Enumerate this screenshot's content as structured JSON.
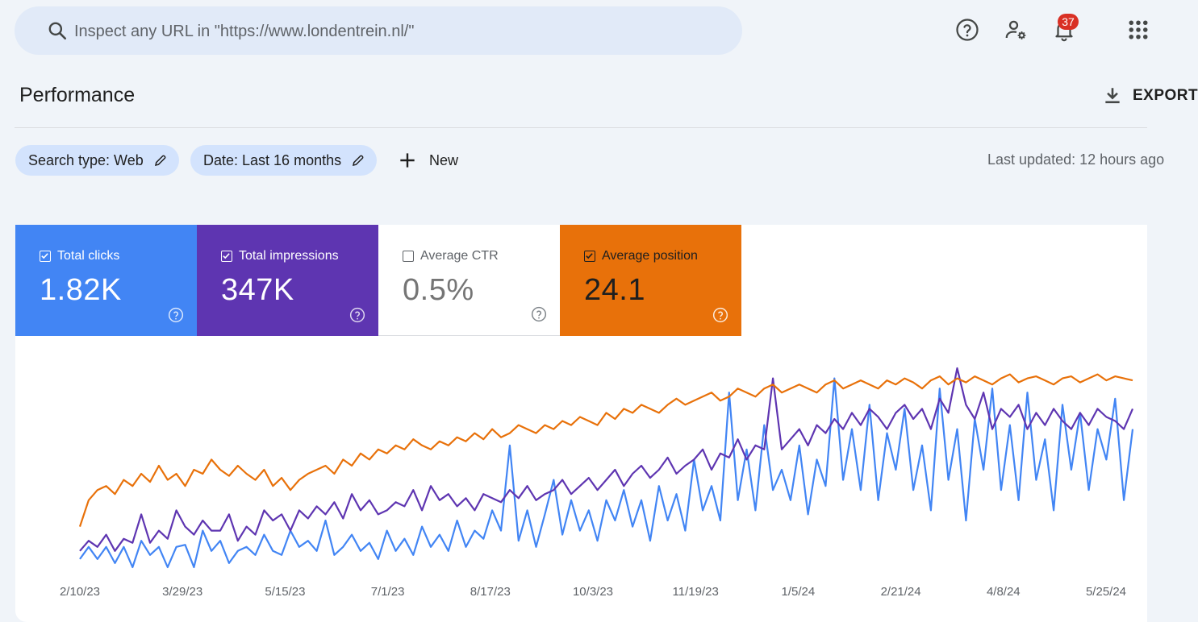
{
  "search": {
    "placeholder": "Inspect any URL in \"https://www.londentrein.nl/\""
  },
  "header": {
    "notification_count": "37"
  },
  "page": {
    "title": "Performance",
    "export_label": "EXPORT"
  },
  "filters": {
    "search_type": "Search type: Web",
    "date": "Date: Last 16 months",
    "new_label": "New",
    "last_updated": "Last updated: 12 hours ago"
  },
  "metrics": {
    "clicks": {
      "label": "Total clicks",
      "value": "1.82K",
      "checked": true,
      "color": "#4285f4"
    },
    "impressions": {
      "label": "Total impressions",
      "value": "347K",
      "checked": true,
      "color": "#5e35b1"
    },
    "ctr": {
      "label": "Average CTR",
      "value": "0.5%",
      "checked": false,
      "color": "#00897b"
    },
    "position": {
      "label": "Average position",
      "value": "24.1",
      "checked": true,
      "color": "#e8710a"
    }
  },
  "chart_data": {
    "type": "line",
    "x_tick_labels": [
      "2/10/23",
      "3/29/23",
      "5/15/23",
      "7/1/23",
      "8/17/23",
      "10/3/23",
      "11/19/23",
      "1/5/24",
      "2/21/24",
      "4/8/24",
      "5/25/24"
    ],
    "series": [
      {
        "name": "Total clicks",
        "color": "#4285f4",
        "values": [
          0.06,
          0.12,
          0.06,
          0.12,
          0.04,
          0.12,
          0.02,
          0.15,
          0.08,
          0.12,
          0.02,
          0.12,
          0.13,
          0.02,
          0.2,
          0.1,
          0.15,
          0.04,
          0.1,
          0.12,
          0.08,
          0.18,
          0.1,
          0.08,
          0.2,
          0.12,
          0.15,
          0.1,
          0.25,
          0.08,
          0.12,
          0.18,
          0.1,
          0.14,
          0.06,
          0.2,
          0.1,
          0.16,
          0.08,
          0.22,
          0.12,
          0.18,
          0.1,
          0.25,
          0.12,
          0.2,
          0.16,
          0.3,
          0.2,
          0.62,
          0.15,
          0.3,
          0.12,
          0.28,
          0.45,
          0.18,
          0.35,
          0.2,
          0.3,
          0.15,
          0.35,
          0.25,
          0.4,
          0.22,
          0.35,
          0.15,
          0.42,
          0.25,
          0.38,
          0.2,
          0.55,
          0.3,
          0.42,
          0.25,
          0.88,
          0.35,
          0.6,
          0.3,
          0.72,
          0.4,
          0.5,
          0.35,
          0.62,
          0.28,
          0.55,
          0.42,
          0.95,
          0.45,
          0.7,
          0.4,
          0.82,
          0.35,
          0.68,
          0.5,
          0.8,
          0.4,
          0.62,
          0.3,
          0.9,
          0.45,
          0.7,
          0.25,
          0.75,
          0.5,
          0.9,
          0.4,
          0.72,
          0.35,
          0.88,
          0.45,
          0.65,
          0.3,
          0.82,
          0.5,
          0.78,
          0.4,
          0.7,
          0.55,
          0.85,
          0.35,
          0.7
        ]
      },
      {
        "name": "Total impressions",
        "color": "#5e35b1",
        "values": [
          0.1,
          0.15,
          0.12,
          0.18,
          0.1,
          0.16,
          0.14,
          0.28,
          0.14,
          0.2,
          0.16,
          0.3,
          0.22,
          0.18,
          0.25,
          0.2,
          0.2,
          0.28,
          0.15,
          0.22,
          0.18,
          0.3,
          0.25,
          0.28,
          0.2,
          0.3,
          0.26,
          0.32,
          0.28,
          0.34,
          0.26,
          0.38,
          0.3,
          0.35,
          0.28,
          0.3,
          0.34,
          0.32,
          0.4,
          0.3,
          0.42,
          0.35,
          0.38,
          0.32,
          0.36,
          0.3,
          0.38,
          0.36,
          0.34,
          0.4,
          0.36,
          0.42,
          0.35,
          0.38,
          0.4,
          0.45,
          0.38,
          0.42,
          0.46,
          0.4,
          0.45,
          0.5,
          0.42,
          0.48,
          0.52,
          0.46,
          0.5,
          0.56,
          0.48,
          0.52,
          0.55,
          0.6,
          0.5,
          0.58,
          0.56,
          0.65,
          0.55,
          0.62,
          0.6,
          0.95,
          0.6,
          0.65,
          0.7,
          0.62,
          0.72,
          0.68,
          0.75,
          0.7,
          0.78,
          0.72,
          0.8,
          0.76,
          0.7,
          0.78,
          0.82,
          0.75,
          0.8,
          0.7,
          0.85,
          0.78,
          1.0,
          0.82,
          0.75,
          0.88,
          0.7,
          0.8,
          0.76,
          0.82,
          0.7,
          0.78,
          0.72,
          0.8,
          0.74,
          0.7,
          0.78,
          0.72,
          0.8,
          0.76,
          0.74,
          0.7,
          0.8
        ]
      },
      {
        "name": "Average position",
        "color": "#e8710a",
        "values": [
          0.22,
          0.35,
          0.4,
          0.42,
          0.38,
          0.45,
          0.42,
          0.48,
          0.44,
          0.52,
          0.45,
          0.48,
          0.42,
          0.5,
          0.48,
          0.55,
          0.5,
          0.47,
          0.52,
          0.48,
          0.45,
          0.5,
          0.42,
          0.46,
          0.4,
          0.45,
          0.48,
          0.5,
          0.52,
          0.48,
          0.55,
          0.52,
          0.58,
          0.55,
          0.6,
          0.58,
          0.62,
          0.6,
          0.65,
          0.62,
          0.6,
          0.64,
          0.62,
          0.66,
          0.64,
          0.68,
          0.65,
          0.7,
          0.66,
          0.68,
          0.72,
          0.7,
          0.68,
          0.72,
          0.7,
          0.74,
          0.72,
          0.76,
          0.74,
          0.72,
          0.78,
          0.75,
          0.8,
          0.78,
          0.82,
          0.8,
          0.78,
          0.82,
          0.85,
          0.82,
          0.84,
          0.86,
          0.88,
          0.84,
          0.86,
          0.9,
          0.88,
          0.86,
          0.9,
          0.92,
          0.88,
          0.9,
          0.92,
          0.9,
          0.88,
          0.92,
          0.94,
          0.9,
          0.92,
          0.94,
          0.92,
          0.9,
          0.94,
          0.92,
          0.95,
          0.93,
          0.9,
          0.94,
          0.96,
          0.92,
          0.95,
          0.93,
          0.96,
          0.94,
          0.92,
          0.95,
          0.97,
          0.93,
          0.95,
          0.96,
          0.94,
          0.92,
          0.95,
          0.96,
          0.93,
          0.95,
          0.97,
          0.94,
          0.96,
          0.95,
          0.94
        ]
      }
    ]
  }
}
